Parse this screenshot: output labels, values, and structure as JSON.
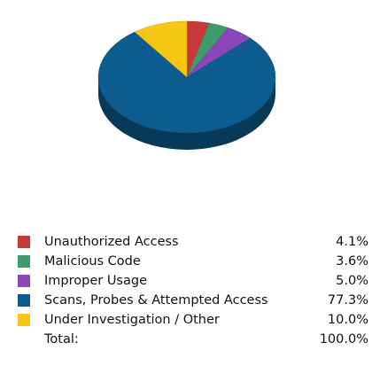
{
  "chart_data": {
    "type": "pie",
    "title": "",
    "slices": [
      {
        "label": "Unauthorized Access",
        "value": 4.1,
        "display": "4.1%",
        "color": "#c8383a"
      },
      {
        "label": "Malicious Code",
        "value": 3.6,
        "display": "3.6%",
        "color": "#3f9b6c"
      },
      {
        "label": "Improper Usage",
        "value": 5.0,
        "display": "5.0%",
        "color": "#8b46b8"
      },
      {
        "label": "Scans, Probes & Attempted Access",
        "value": 77.3,
        "display": "77.3%",
        "color": "#0c5c8f"
      },
      {
        "label": "Under Investigation / Other",
        "value": 10.0,
        "display": "10.0%",
        "color": "#f6c712"
      }
    ],
    "total": {
      "label": "Total:",
      "display": "100.0%"
    },
    "legend_position": "bottom",
    "style": "3d"
  }
}
